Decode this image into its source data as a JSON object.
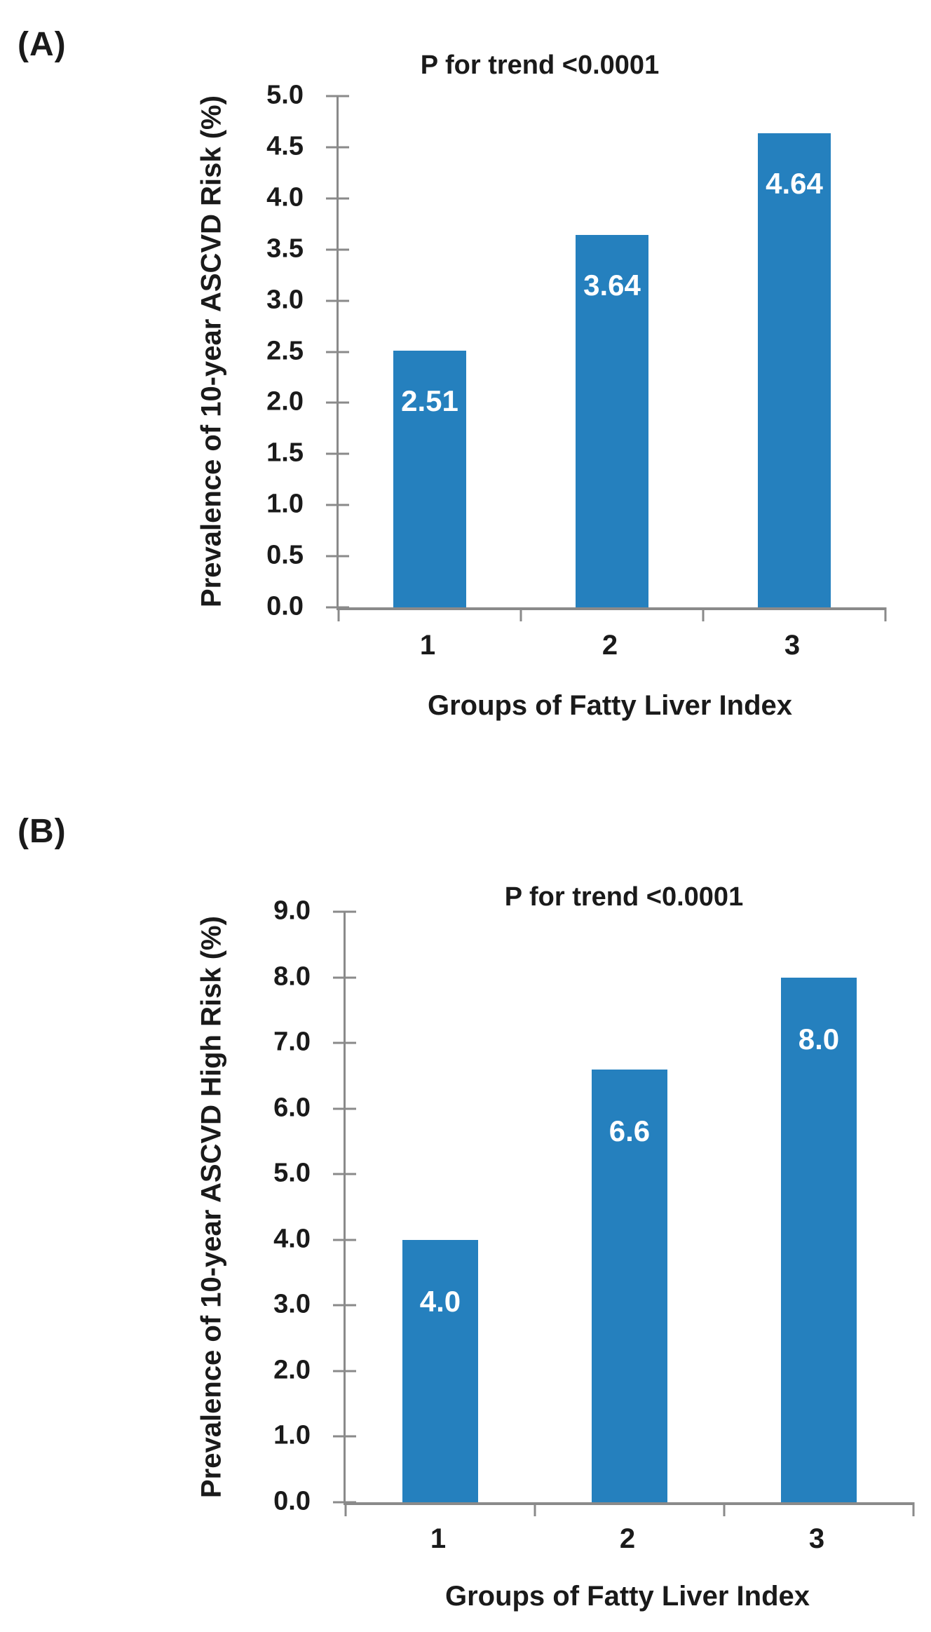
{
  "page": {
    "background": "#ffffff"
  },
  "colors": {
    "bar": "#2580BE",
    "axis": "#8a8a8a",
    "text": "#1a1a1a",
    "value_label": "#ffffff"
  },
  "chart_data": [
    {
      "type": "bar",
      "panel_label": "(A)",
      "title": "P for trend <0.0001",
      "categories": [
        "1",
        "2",
        "3"
      ],
      "values": [
        2.51,
        3.64,
        4.64
      ],
      "value_labels": [
        "2.51",
        "3.64",
        "4.64"
      ],
      "xlabel": "Groups of Fatty Liver Index",
      "ylabel": "Prevalence of 10-year ASCVD Risk (%)",
      "ylim": [
        0,
        5
      ],
      "ytick_step": 0.5,
      "yticks": [
        "0.0",
        "0.5",
        "1.0",
        "1.5",
        "2.0",
        "2.5",
        "3.0",
        "3.5",
        "4.0",
        "4.5",
        "5.0"
      ],
      "grid": false,
      "legend": null
    },
    {
      "type": "bar",
      "panel_label": "(B)",
      "title": "P for trend <0.0001",
      "categories": [
        "1",
        "2",
        "3"
      ],
      "values": [
        4.0,
        6.6,
        8.0
      ],
      "value_labels": [
        "4.0",
        "6.6",
        "8.0"
      ],
      "xlabel": "Groups of Fatty Liver Index",
      "ylabel": "Prevalence of 10-year ASCVD High Risk (%)",
      "ylim": [
        0,
        9
      ],
      "ytick_step": 1.0,
      "yticks": [
        "0.0",
        "1.0",
        "2.0",
        "3.0",
        "4.0",
        "5.0",
        "6.0",
        "7.0",
        "8.0",
        "9.0"
      ],
      "grid": false,
      "legend": null
    }
  ]
}
